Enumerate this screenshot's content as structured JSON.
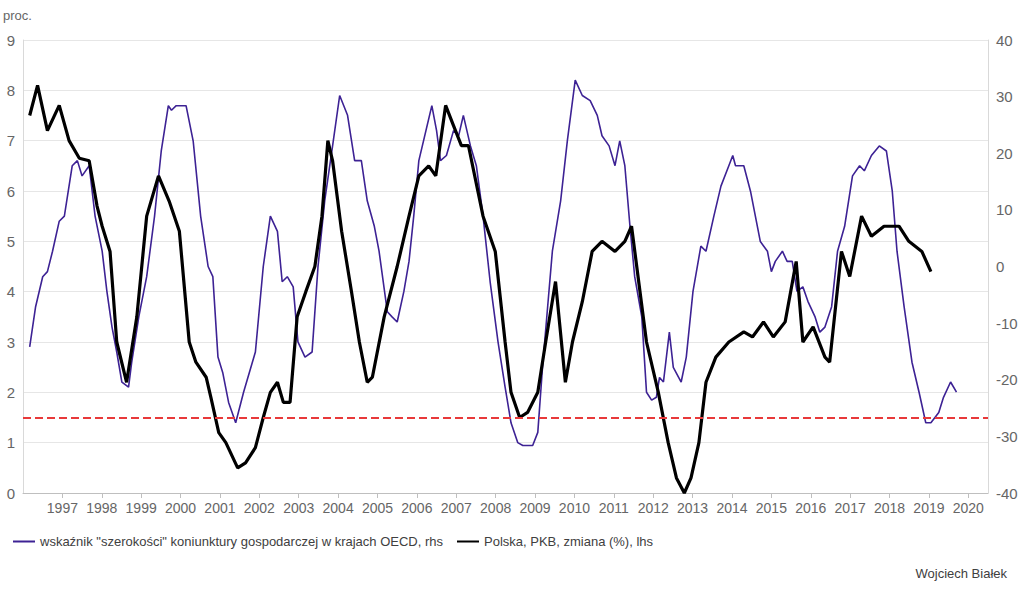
{
  "chart_data": {
    "type": "line",
    "y_label": "proc.",
    "source": "Wojciech Białek",
    "xlim": [
      1996.5,
      2021
    ],
    "xticks": [
      {
        "value": 1997.5,
        "label": "1997"
      },
      {
        "value": 1998.5,
        "label": "1998"
      },
      {
        "value": 1999.5,
        "label": "1999"
      },
      {
        "value": 2000.5,
        "label": "2000"
      },
      {
        "value": 2001.5,
        "label": "2001"
      },
      {
        "value": 2002.5,
        "label": "2002"
      },
      {
        "value": 2003.5,
        "label": "2003"
      },
      {
        "value": 2004.5,
        "label": "2004"
      },
      {
        "value": 2005.5,
        "label": "2005"
      },
      {
        "value": 2006.5,
        "label": "2006"
      },
      {
        "value": 2007.5,
        "label": "2007"
      },
      {
        "value": 2008.5,
        "label": "2008"
      },
      {
        "value": 2009.5,
        "label": "2009"
      },
      {
        "value": 2010.5,
        "label": "2010"
      },
      {
        "value": 2011.5,
        "label": "2011"
      },
      {
        "value": 2012.5,
        "label": "2012"
      },
      {
        "value": 2013.5,
        "label": "2013"
      },
      {
        "value": 2014.5,
        "label": "2014"
      },
      {
        "value": 2015.5,
        "label": "2015"
      },
      {
        "value": 2016.5,
        "label": "2016"
      },
      {
        "value": 2017.5,
        "label": "2017"
      },
      {
        "value": 2018.5,
        "label": "2018"
      },
      {
        "value": 2019.5,
        "label": "2019"
      },
      {
        "value": 2020.5,
        "label": "2020"
      }
    ],
    "ylim": [
      0,
      9
    ],
    "yticks": [
      0,
      1,
      2,
      3,
      4,
      5,
      6,
      7,
      8,
      9
    ],
    "y2lim": [
      -40,
      40
    ],
    "y2ticks": [
      -40,
      -30,
      -20,
      -10,
      0,
      10,
      20,
      30,
      40
    ],
    "grid": true,
    "legend": "bottom-left",
    "reference_lines": [
      {
        "value": 1.5,
        "axis": "y",
        "color": "#e8393a",
        "line_style": "dashed"
      }
    ],
    "series": [
      {
        "name": "wskaźnik \"szerokości\" koniunktury gospodarczej w krajach OECD, rhs",
        "color": "#3d2294",
        "axis": "y2",
        "x": [
          1996.67,
          1996.82,
          1997.0,
          1997.12,
          1997.25,
          1997.42,
          1997.55,
          1997.75,
          1997.88,
          1998.0,
          1998.18,
          1998.33,
          1998.51,
          1998.63,
          1998.76,
          1998.88,
          1999.01,
          1999.18,
          1999.26,
          1999.44,
          1999.64,
          1999.84,
          2000.01,
          2000.19,
          2000.27,
          2000.39,
          2000.64,
          2000.82,
          2001.01,
          2001.2,
          2001.32,
          2001.45,
          2001.57,
          2001.72,
          2001.9,
          2002.1,
          2002.4,
          2002.6,
          2002.78,
          2002.96,
          2003.08,
          2003.21,
          2003.36,
          2003.48,
          2003.66,
          2003.84,
          2003.99,
          2004.16,
          2004.36,
          2004.54,
          2004.74,
          2004.92,
          2005.09,
          2005.24,
          2005.42,
          2005.54,
          2005.75,
          2005.87,
          2006.0,
          2006.17,
          2006.3,
          2006.42,
          2006.55,
          2006.73,
          2006.88,
          2007.0,
          2007.1,
          2007.25,
          2007.43,
          2007.56,
          2007.68,
          2007.86,
          2008.01,
          2008.18,
          2008.36,
          2008.56,
          2008.74,
          2008.89,
          2009.06,
          2009.19,
          2009.44,
          2009.57,
          2009.69,
          2009.82,
          2009.94,
          2010.15,
          2010.32,
          2010.52,
          2010.7,
          2010.9,
          2011.08,
          2011.2,
          2011.38,
          2011.53,
          2011.65,
          2011.78,
          2011.91,
          2012.03,
          2012.21,
          2012.33,
          2012.46,
          2012.58,
          2012.66,
          2012.76,
          2012.91,
          2013.01,
          2013.21,
          2013.34,
          2013.51,
          2013.71,
          2013.84,
          2014.04,
          2014.22,
          2014.42,
          2014.52,
          2014.59,
          2014.8,
          2014.97,
          2015.22,
          2015.4,
          2015.5,
          2015.6,
          2015.78,
          2015.9,
          2016.03,
          2016.15,
          2016.3,
          2016.43,
          2016.61,
          2016.73,
          2016.86,
          2017.03,
          2017.18,
          2017.36,
          2017.56,
          2017.74,
          2017.86,
          2018.04,
          2018.24,
          2018.42,
          2018.57,
          2018.69,
          2018.87,
          2019.07,
          2019.25,
          2019.42,
          2019.55,
          2019.75,
          2019.87,
          2020.05,
          2020.2
        ],
        "values": [
          -14.2,
          -7.1,
          -1.8,
          -0.9,
          2.7,
          8.0,
          8.9,
          17.8,
          18.7,
          16.0,
          17.8,
          8.9,
          2.7,
          -4.4,
          -10.7,
          -15.1,
          -20.4,
          -21.3,
          -16.9,
          -8.9,
          -1.8,
          8.9,
          20.4,
          28.4,
          27.6,
          28.4,
          28.4,
          22.2,
          8.9,
          0.0,
          -1.8,
          -16.0,
          -18.7,
          -24.0,
          -27.6,
          -22.2,
          -15.1,
          0.0,
          8.9,
          6.2,
          -2.7,
          -1.8,
          -3.6,
          -13.3,
          -16.0,
          -15.1,
          0.0,
          11.6,
          21.3,
          30.2,
          26.7,
          18.7,
          18.7,
          11.6,
          7.1,
          2.7,
          -8.0,
          -8.9,
          -9.8,
          -4.4,
          0.9,
          8.9,
          18.7,
          24.0,
          28.4,
          24.0,
          18.7,
          19.6,
          24.0,
          23.1,
          26.7,
          21.3,
          17.8,
          8.9,
          -2.7,
          -13.3,
          -21.3,
          -27.6,
          -31.1,
          -31.6,
          -31.6,
          -29.3,
          -17.8,
          -7.1,
          2.7,
          11.6,
          22.2,
          32.9,
          30.2,
          29.3,
          26.7,
          23.1,
          21.3,
          17.8,
          22.2,
          17.8,
          7.1,
          -1.8,
          -8.9,
          -22.2,
          -23.6,
          -23.1,
          -19.6,
          -20.4,
          -11.6,
          -17.8,
          -20.4,
          -16.0,
          -4.4,
          3.6,
          2.7,
          8.9,
          14.2,
          17.8,
          19.6,
          17.8,
          17.8,
          13.3,
          4.4,
          2.7,
          -0.9,
          0.9,
          2.7,
          0.9,
          0.9,
          -4.4,
          -3.6,
          -6.2,
          -8.9,
          -11.6,
          -10.7,
          -7.1,
          2.7,
          7.1,
          16.0,
          17.8,
          16.9,
          19.6,
          21.3,
          20.4,
          13.3,
          2.7,
          -7.1,
          -16.9,
          -22.2,
          -27.6,
          -27.6,
          -25.8,
          -23.1,
          -20.4,
          -22.2
        ]
      },
      {
        "name": "Polska, PKB, zmiana (%), lhs",
        "color": "#000000",
        "axis": "y",
        "x": [
          1996.67,
          1996.87,
          1997.12,
          1997.42,
          1997.67,
          1997.93,
          1998.18,
          1998.38,
          1998.51,
          1998.71,
          1998.88,
          1999.13,
          1999.39,
          1999.64,
          1999.94,
          2000.21,
          2000.47,
          2000.72,
          2000.89,
          2001.15,
          2001.27,
          2001.47,
          2001.65,
          2001.95,
          2002.15,
          2002.4,
          2002.6,
          2002.78,
          2002.96,
          2003.11,
          2003.28,
          2003.46,
          2003.68,
          2003.91,
          2004.09,
          2004.24,
          2004.36,
          2004.59,
          2004.84,
          2005.04,
          2005.24,
          2005.37,
          2005.67,
          2006.0,
          2006.3,
          2006.55,
          2006.8,
          2006.98,
          2007.23,
          2007.43,
          2007.63,
          2007.81,
          2008.18,
          2008.49,
          2008.74,
          2008.89,
          2009.11,
          2009.31,
          2009.57,
          2009.77,
          2010.02,
          2010.27,
          2010.45,
          2010.7,
          2010.95,
          2011.2,
          2011.53,
          2011.78,
          2011.95,
          2012.33,
          2012.63,
          2012.88,
          2013.09,
          2013.29,
          2013.46,
          2013.66,
          2013.84,
          2014.09,
          2014.42,
          2014.8,
          2015.02,
          2015.3,
          2015.55,
          2015.85,
          2016.13,
          2016.3,
          2016.56,
          2016.86,
          2016.98,
          2017.28,
          2017.49,
          2017.79,
          2018.04,
          2018.36,
          2018.74,
          2018.99,
          2019.32,
          2019.55
        ],
        "values": [
          7.5,
          8.1,
          7.2,
          7.7,
          7.0,
          6.65,
          6.6,
          5.7,
          5.3,
          4.8,
          3.0,
          2.2,
          3.5,
          5.5,
          6.3,
          5.8,
          5.2,
          3.0,
          2.6,
          2.3,
          1.9,
          1.2,
          1.0,
          0.5,
          0.6,
          0.9,
          1.5,
          2.0,
          2.2,
          1.8,
          1.8,
          3.5,
          4.0,
          4.5,
          5.5,
          7.0,
          6.6,
          5.2,
          4.0,
          3.0,
          2.2,
          2.3,
          3.5,
          4.5,
          5.5,
          6.3,
          6.5,
          6.3,
          7.7,
          7.3,
          6.9,
          6.9,
          5.5,
          4.8,
          3.0,
          2.0,
          1.5,
          1.6,
          2.0,
          3.0,
          4.2,
          2.2,
          3.0,
          3.8,
          4.8,
          5.0,
          4.8,
          5.0,
          5.3,
          3.0,
          2.0,
          1.0,
          0.3,
          0.0,
          0.3,
          1.0,
          2.2,
          2.7,
          3.0,
          3.2,
          3.1,
          3.4,
          3.1,
          3.4,
          4.6,
          3.0,
          3.3,
          2.7,
          2.6,
          4.8,
          4.3,
          5.5,
          5.1,
          5.3,
          5.3,
          5.0,
          4.8,
          4.4
        ]
      }
    ]
  }
}
